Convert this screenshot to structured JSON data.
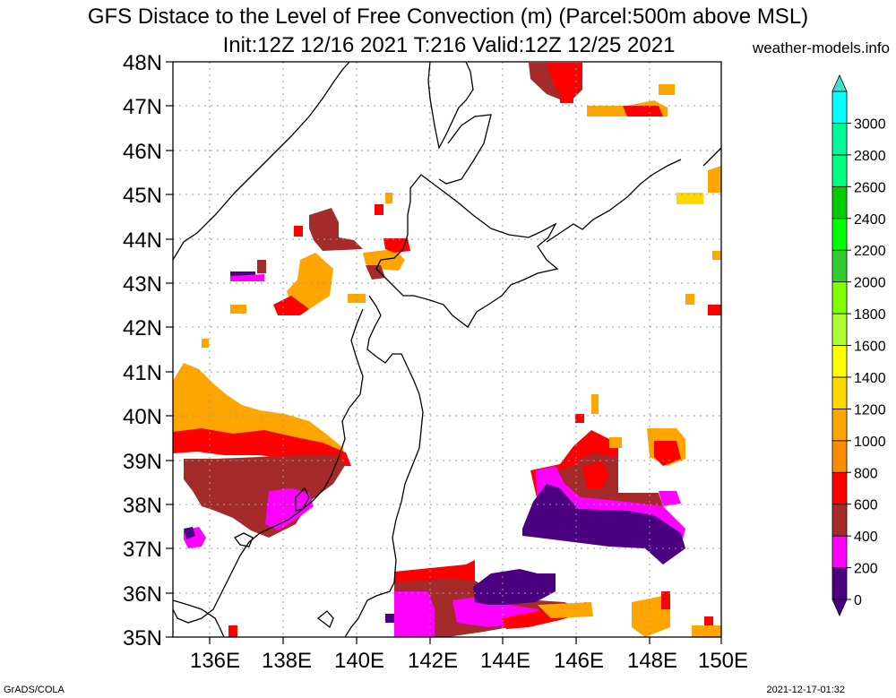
{
  "title": {
    "line1": "GFS Distace to the Level of Free Convection (m) (Parcel:500m above MSL)",
    "line2": "Init:12Z 12/16 2021 T:216 Valid:12Z 12/25 2021"
  },
  "site": "weather-models.info",
  "footer": {
    "left": "GrADS/COLA",
    "right": "2021-12-17-01:32"
  },
  "map": {
    "lon_range": [
      135,
      150
    ],
    "lat_range": [
      35,
      48
    ],
    "lat_labels": [
      "35N",
      "36N",
      "37N",
      "38N",
      "39N",
      "40N",
      "41N",
      "42N",
      "43N",
      "44N",
      "45N",
      "46N",
      "47N",
      "48N"
    ],
    "lon_labels": [
      "136E",
      "138E",
      "140E",
      "142E",
      "144E",
      "146E",
      "148E",
      "150E"
    ]
  },
  "colorbar": {
    "levels": [
      "0",
      "200",
      "400",
      "600",
      "800",
      "1000",
      "1200",
      "1400",
      "1600",
      "1800",
      "2000",
      "2200",
      "2400",
      "2600",
      "2800",
      "3000"
    ],
    "colors": [
      "#4b0082",
      "#ff00ff",
      "#a52a2a",
      "#ff0000",
      "#ff8c00",
      "#ffa500",
      "#ffd700",
      "#ffff00",
      "#adff2f",
      "#7fff00",
      "#32cd32",
      "#00ff00",
      "#00cd00",
      "#00ff7f",
      "#00fa9a",
      "#00ffff"
    ],
    "over_color": "#40e0d0",
    "under_color": "#4b0082"
  }
}
